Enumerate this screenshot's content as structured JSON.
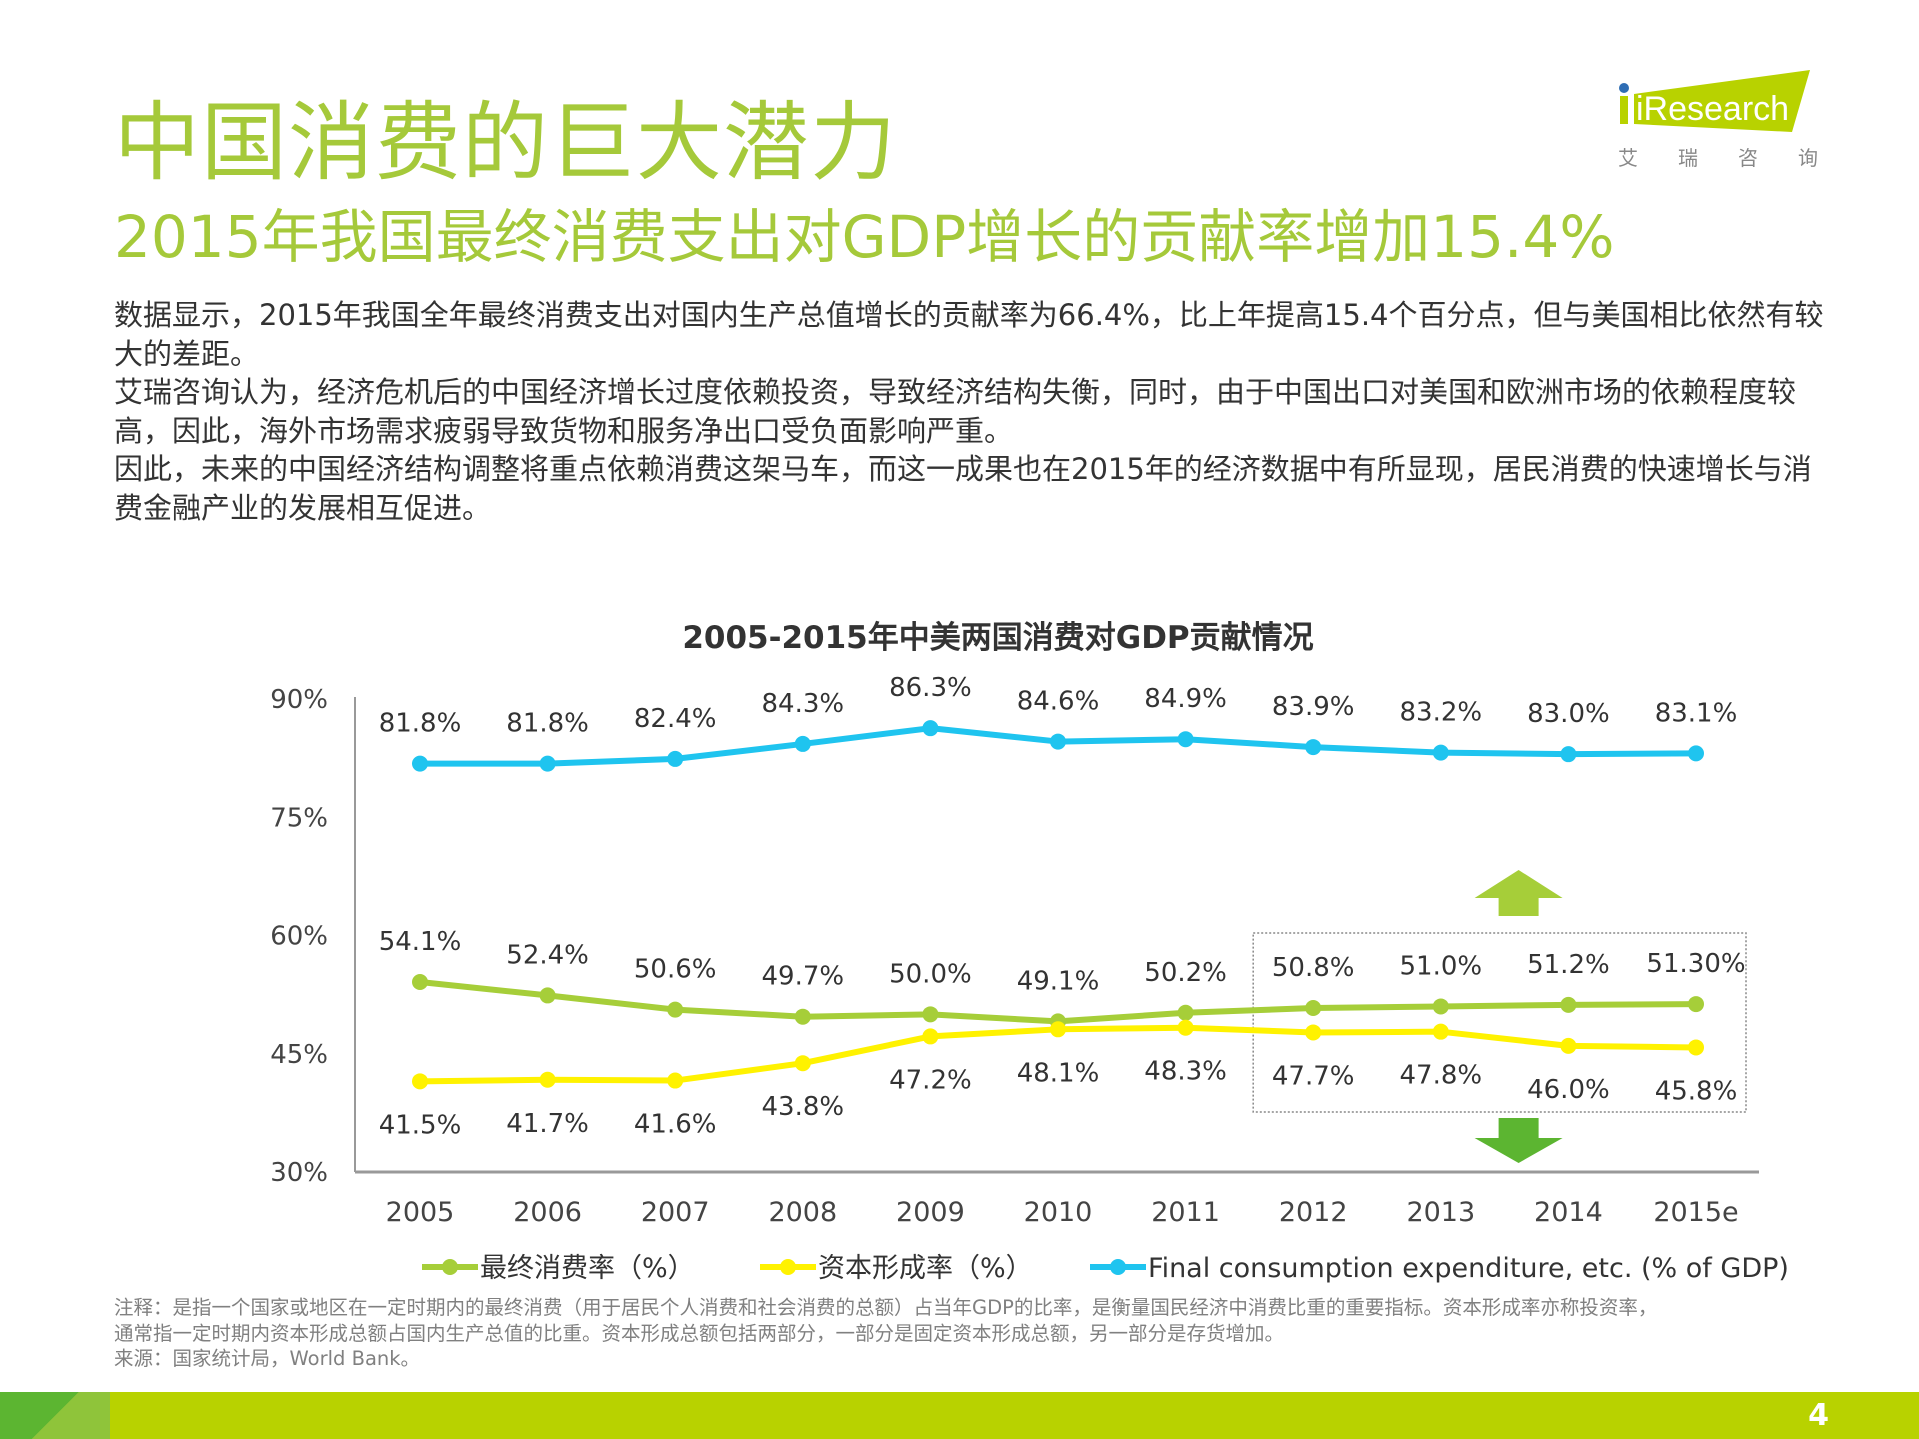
{
  "header": {
    "title": "中国消费的巨大潜力",
    "subtitle": "2015年我国最终消费支出对GDP增长的贡献率增加15.4%",
    "logo_text": "iResearch",
    "logo_cn": [
      "艾",
      "瑞",
      "咨",
      "询"
    ]
  },
  "body": {
    "paragraphs": [
      "数据显示，2015年我国全年最终消费支出对国内生产总值增长的贡献率为66.4%，比上年提高15.4个百分点，但与美国相比依然有较大的差距。",
      "艾瑞咨询认为，经济危机后的中国经济增长过度依赖投资，导致经济结构失衡，同时，由于中国出口对美国和欧洲市场的依赖程度较高，因此，海外市场需求疲弱导致货物和服务净出口受负面影响严重。",
      "因此，未来的中国经济结构调整将重点依赖消费这架马车，而这一成果也在2015年的经济数据中有所显现，居民消费的快速增长与消费金融产业的发展相互促进。"
    ]
  },
  "chart_data": {
    "type": "line",
    "title": "2005-2015年中美两国消费对GDP贡献情况",
    "categories": [
      "2005",
      "2006",
      "2007",
      "2008",
      "2009",
      "2010",
      "2011",
      "2012",
      "2013",
      "2014",
      "2015e"
    ],
    "ylim": [
      30,
      90
    ],
    "yticks": [
      "90%",
      "75%",
      "60%",
      "45%",
      "30%"
    ],
    "ytick_values": [
      90,
      75,
      60,
      45,
      30
    ],
    "grid": false,
    "legend_position": "bottom",
    "series": [
      {
        "name": "最终消费率（%）",
        "color": "#a6ce39",
        "values": [
          54.1,
          52.4,
          50.6,
          49.7,
          50.0,
          49.1,
          50.2,
          50.8,
          51.0,
          51.2,
          51.3
        ],
        "labels": [
          "54.1%",
          "52.4%",
          "50.6%",
          "49.7%",
          "50.0%",
          "49.1%",
          "50.2%",
          "50.8%",
          "51.0%",
          "51.2%",
          "51.30%"
        ],
        "label_side": "above"
      },
      {
        "name": "资本形成率（%）",
        "color": "#fff200",
        "values": [
          41.5,
          41.7,
          41.6,
          43.8,
          47.2,
          48.1,
          48.3,
          47.7,
          47.8,
          46.0,
          45.8
        ],
        "labels": [
          "41.5%",
          "41.7%",
          "41.6%",
          "43.8%",
          "47.2%",
          "48.1%",
          "48.3%",
          "47.7%",
          "47.8%",
          "46.0%",
          "45.8%"
        ],
        "label_side": "below"
      },
      {
        "name": "Final consumption expenditure, etc. (% of GDP)",
        "color": "#1fc4ef",
        "values": [
          81.8,
          81.8,
          82.4,
          84.3,
          86.3,
          84.6,
          84.9,
          83.9,
          83.2,
          83.0,
          83.1
        ],
        "labels": [
          "81.8%",
          "81.8%",
          "82.4%",
          "84.3%",
          "86.3%",
          "84.6%",
          "84.9%",
          "83.9%",
          "83.2%",
          "83.0%",
          "83.1%"
        ],
        "label_side": "above"
      }
    ],
    "annotations": {
      "highlight_box_range": [
        "2012",
        "2015e"
      ],
      "up_arrow_color": "#a6ce39",
      "down_arrow_color": "#5cb531"
    }
  },
  "notes": {
    "note_lines": [
      "注释：是指一个国家或地区在一定时期内的最终消费（用于居民个人消费和社会消费的总额）占当年GDP的比率，是衡量国民经济中消费比重的重要指标。资本形成率亦称投资率，",
      "通常指一定时期内资本形成总额占国内生产总值的比重。资本形成总额包括两部分，一部分是固定资本形成总额，另一部分是存货增加。"
    ],
    "source": "来源：国家统计局，World Bank。"
  },
  "footer": {
    "page_number": "4",
    "bar_color": "#b8d200"
  }
}
